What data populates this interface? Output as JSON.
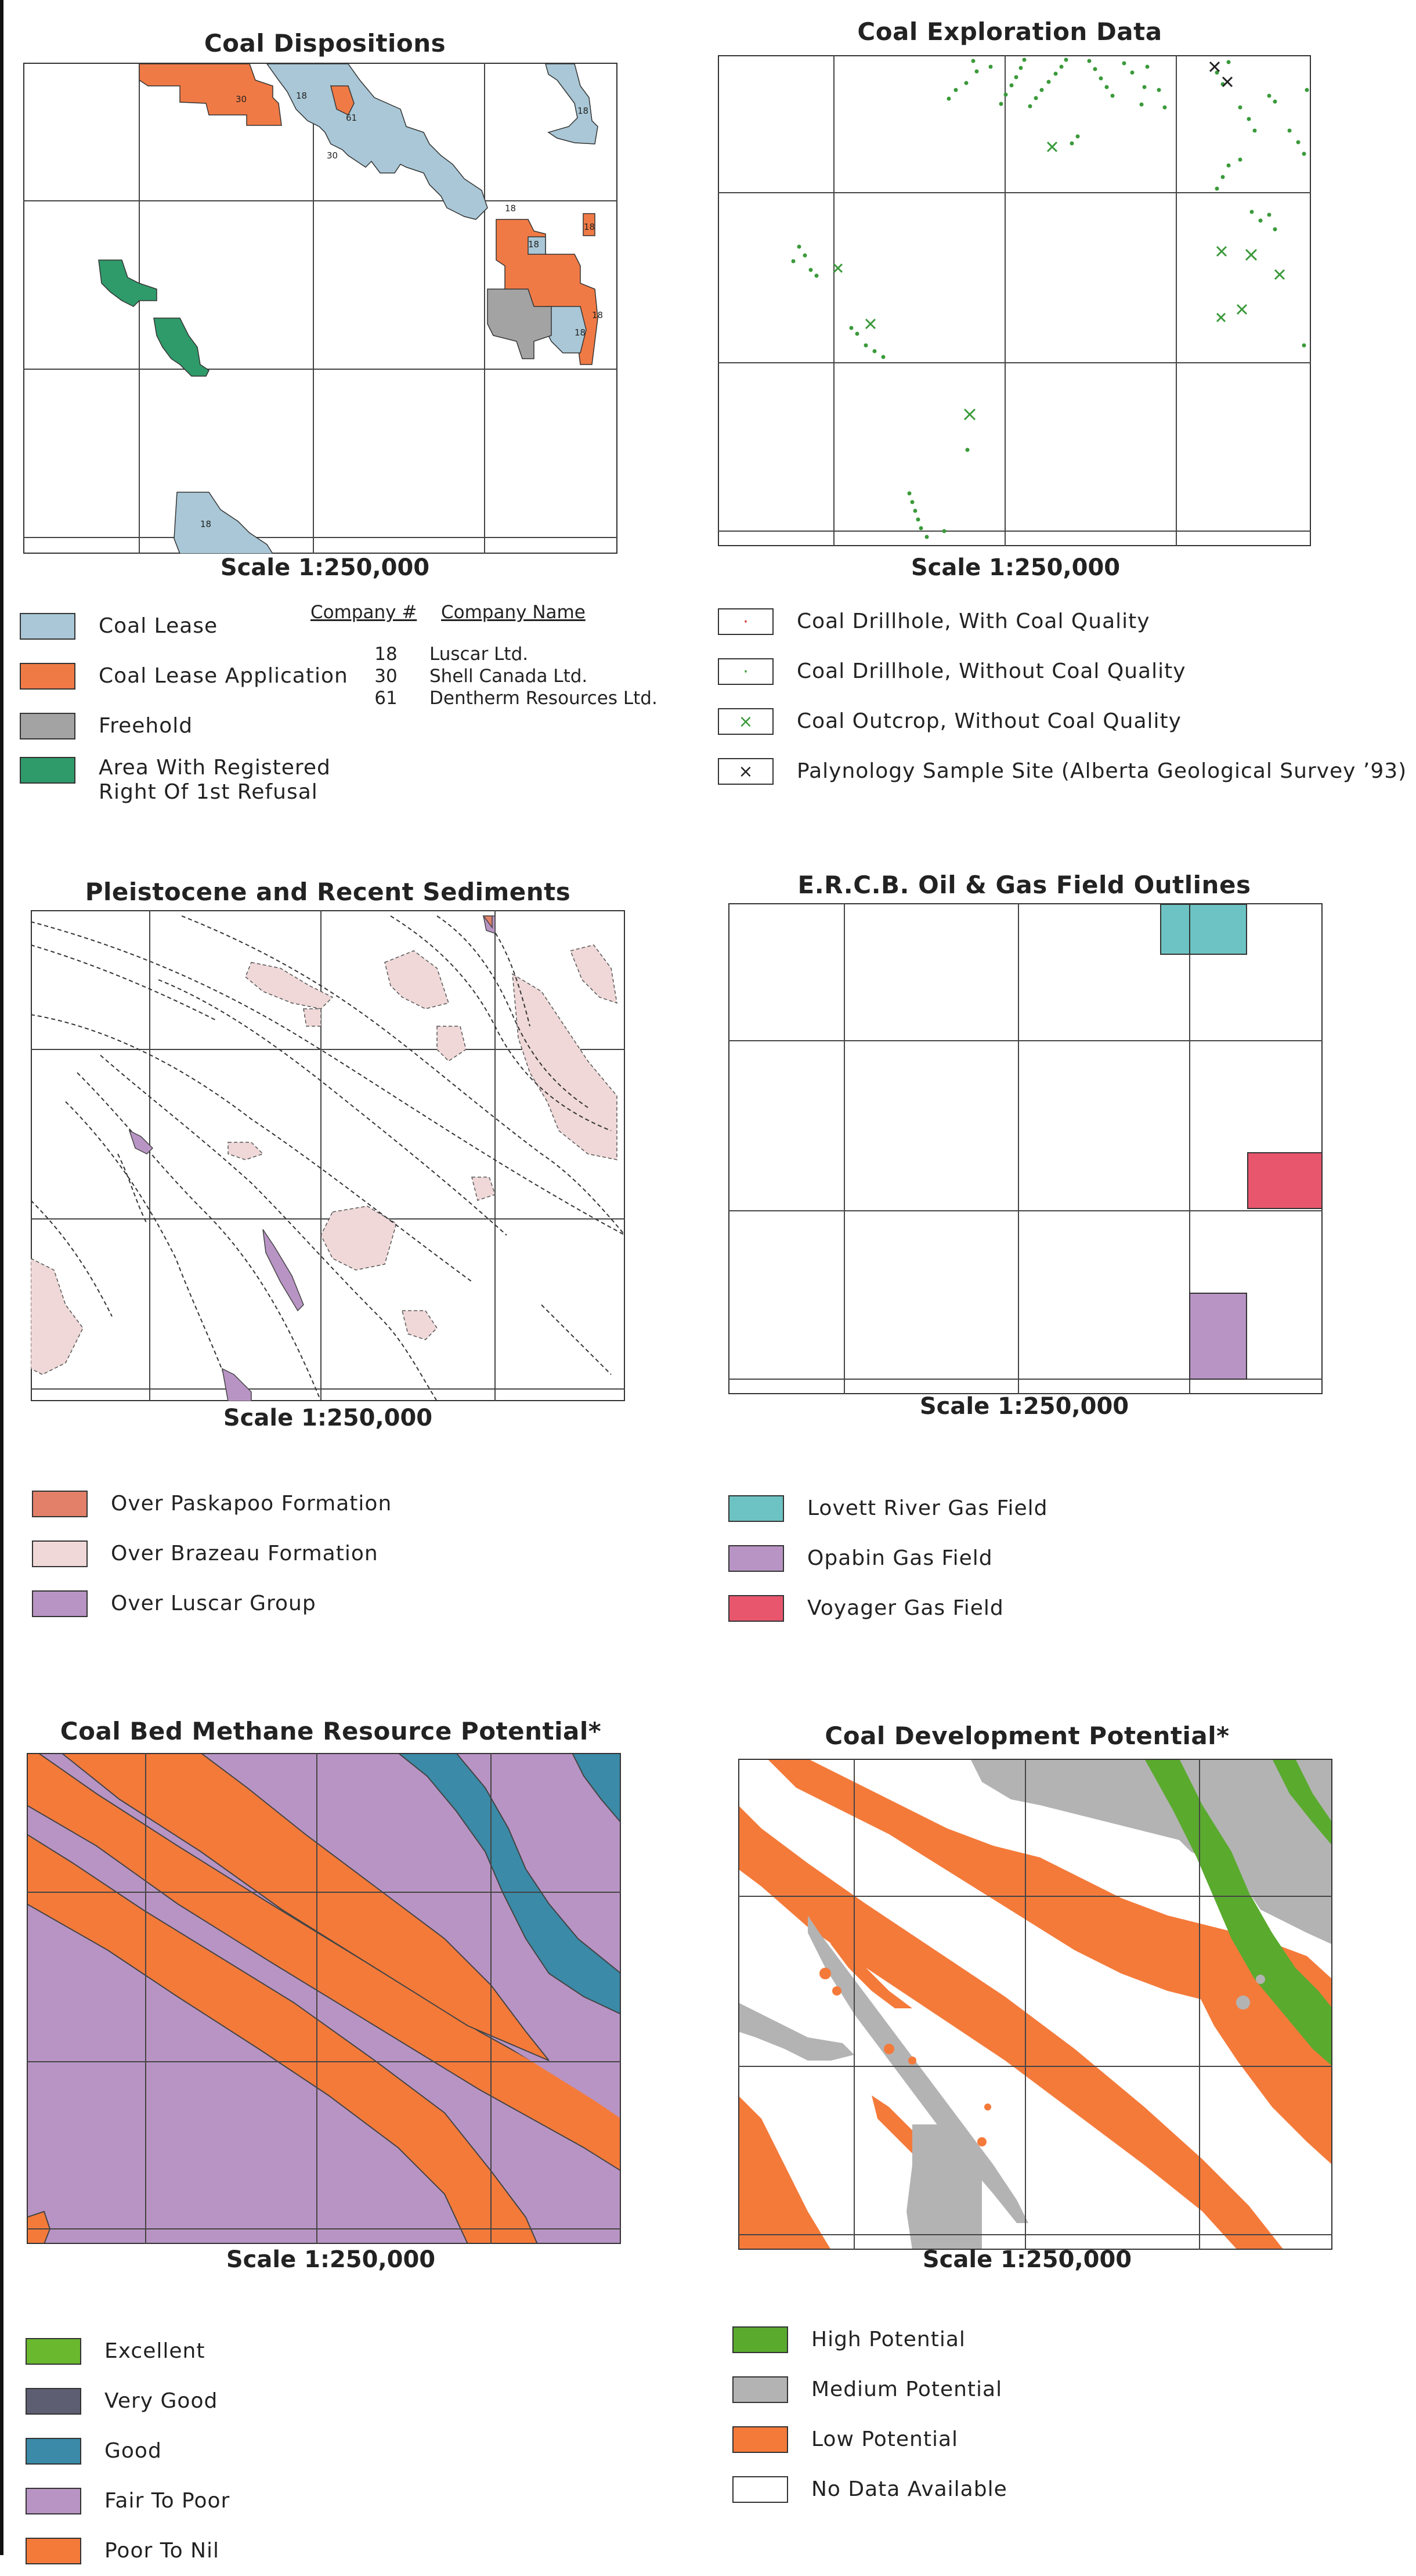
{
  "panels": {
    "coal_dispositions": {
      "title": "Coal Dispositions",
      "scale": "Scale  1:250,000",
      "labels": [
        "18",
        "30",
        "18",
        "61",
        "30",
        "18",
        "18",
        "18",
        "18",
        "18",
        "18",
        "18"
      ],
      "legend": [
        {
          "label": "Coal  Lease",
          "color": "#a9c7d6"
        },
        {
          "label": "Coal  Lease  Application",
          "color": "#f07a45"
        },
        {
          "label": "Freehold",
          "color": "#a3a3a3"
        },
        {
          "label": "Area  With  Registered",
          "label2": "Right  Of  1st  Refusal",
          "color": "#2f9a6a"
        }
      ],
      "company_table": {
        "col1": "Company #",
        "col2": "Company Name",
        "rows": [
          {
            "num": "18",
            "name": "Luscar  Ltd."
          },
          {
            "num": "30",
            "name": "Shell  Canada  Ltd."
          },
          {
            "num": "61",
            "name": "Dentherm  Resources  Ltd."
          }
        ]
      }
    },
    "exploration": {
      "title": "Coal  Exploration  Data",
      "scale": "Scale  1:250,000",
      "legend": [
        {
          "label": "Coal  Drillhole,  With  Coal  Quality",
          "symbol": "·",
          "color": "#d23a3a"
        },
        {
          "label": "Coal  Drillhole,  Without  Coal  Quality",
          "symbol": "·",
          "color": "#3a9a3a"
        },
        {
          "label": "Coal  Outcrop,  Without  Coal  Quality",
          "symbol": "×",
          "color": "#3a9a3a"
        },
        {
          "label": "Palynology  Sample  Site  (Alberta  Geological  Survey  ’93)",
          "symbol": "×",
          "color": "#222222"
        }
      ]
    },
    "pleistocene": {
      "title": "Pleistocene  and  Recent  Sediments",
      "scale": "Scale  1:250,000",
      "legend": [
        {
          "label": "Over  Paskapoo  Formation",
          "color": "#e2806a"
        },
        {
          "label": "Over  Brazeau  Formation",
          "color": "#f0d8d8"
        },
        {
          "label": "Over  Luscar  Group",
          "color": "#b894c4"
        }
      ]
    },
    "ercb": {
      "title": "E.R.C.B.  Oil  &  Gas  Field  Outlines",
      "scale": "Scale  1:250,000",
      "legend": [
        {
          "label": "Lovett  River  Gas  Field",
          "color": "#6dc3c3"
        },
        {
          "label": "Opabin  Gas  Field",
          "color": "#b894c4"
        },
        {
          "label": "Voyager  Gas  Field",
          "color": "#e8566e"
        }
      ]
    },
    "cbm": {
      "title": "Coal  Bed  Methane  Resource  Potential*",
      "scale": "Scale  1:250,000",
      "legend": [
        {
          "label": "Excellent",
          "color": "#6ab82e"
        },
        {
          "label": "Very  Good",
          "color": "#5e5e72"
        },
        {
          "label": "Good",
          "color": "#3a8aa8"
        },
        {
          "label": "Fair  To  Poor",
          "color": "#b894c4"
        },
        {
          "label": "Poor  To  Nil",
          "color": "#f47a3a"
        }
      ]
    },
    "development": {
      "title": "Coal  Development  Potential*",
      "scale": "Scale  1:250,000",
      "legend": [
        {
          "label": "High  Potential",
          "color": "#5aaa2e"
        },
        {
          "label": "Medium  Potential",
          "color": "#b3b3b3"
        },
        {
          "label": "Low  Potential",
          "color": "#f47a3a"
        },
        {
          "label": "No  Data  Available",
          "color": "#ffffff"
        }
      ]
    }
  },
  "colors": {
    "lease": "#a9c7d6",
    "application": "#f07a45",
    "freehold": "#a3a3a3",
    "refusal": "#2f9a6a",
    "drill_green": "#3a9a3a"
  }
}
